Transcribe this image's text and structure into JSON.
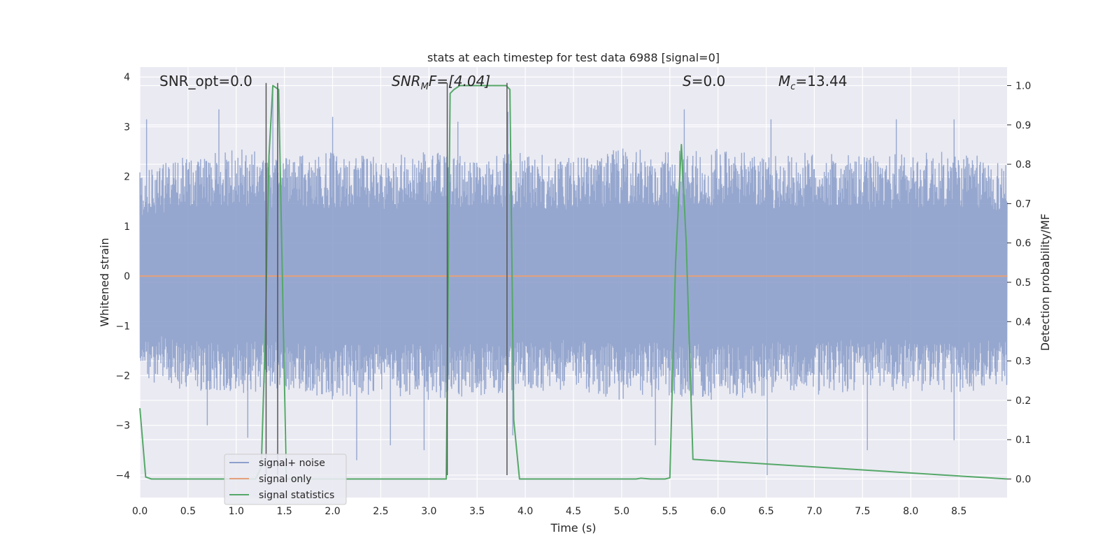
{
  "chart_data": {
    "type": "line",
    "title": "stats at each timestep for test data 6988 [signal=0]",
    "xlabel": "Time (s)",
    "ylabel": "Whitened strain",
    "y2label": "Detection probability/MF",
    "xlim": [
      0.0,
      9.0
    ],
    "ylim": [
      -4.45,
      4.2
    ],
    "y2lim": [
      -0.047,
      1.047
    ],
    "x_ticks": [
      "0.0",
      "0.5",
      "1.0",
      "1.5",
      "2.0",
      "2.5",
      "3.0",
      "3.5",
      "4.0",
      "4.5",
      "5.0",
      "5.5",
      "6.0",
      "6.5",
      "7.0",
      "7.5",
      "8.0",
      "8.5"
    ],
    "y_ticks": [
      "4",
      "3",
      "2",
      "1",
      "0",
      "−1",
      "−2",
      "−3",
      "−4"
    ],
    "y2_ticks": [
      "1.0",
      "0.9",
      "0.8",
      "0.7",
      "0.6",
      "0.5",
      "0.4",
      "0.3",
      "0.2",
      "0.1",
      "0.0"
    ],
    "grid": true,
    "legend_position": "lower-left",
    "annotations": {
      "snr_opt": "SNR_opt=0.0",
      "snr_mf_base": "SNR",
      "snr_mf_sub": "M",
      "snr_mf_rest": "F=[4.04]",
      "s_sym": "S",
      "s_rest": "=0.0",
      "mc_sym": "M",
      "mc_sub": "c",
      "mc_rest": "=13.44"
    },
    "series": [
      {
        "name": "signal+ noise",
        "color": "#8da0cb",
        "note_sampling": "noise trace",
        "band_upper_envelope": [
          [
            0.0,
            2.2
          ],
          [
            0.5,
            2.4
          ],
          [
            1.0,
            2.6
          ],
          [
            1.5,
            2.4
          ],
          [
            2.0,
            2.5
          ],
          [
            2.5,
            2.4
          ],
          [
            3.0,
            2.5
          ],
          [
            3.5,
            2.4
          ],
          [
            4.0,
            2.5
          ],
          [
            4.5,
            2.4
          ],
          [
            5.0,
            2.6
          ],
          [
            5.5,
            2.5
          ],
          [
            6.0,
            2.6
          ],
          [
            6.5,
            2.4
          ],
          [
            7.0,
            2.5
          ],
          [
            7.5,
            2.4
          ],
          [
            8.0,
            2.5
          ],
          [
            8.5,
            2.5
          ],
          [
            9.0,
            2.3
          ]
        ],
        "band_lower_envelope": [
          [
            0.0,
            -2.1
          ],
          [
            0.5,
            -2.3
          ],
          [
            1.0,
            -2.4
          ],
          [
            1.5,
            -2.3
          ],
          [
            2.0,
            -2.5
          ],
          [
            2.5,
            -2.4
          ],
          [
            3.0,
            -2.5
          ],
          [
            3.5,
            -2.4
          ],
          [
            4.0,
            -2.4
          ],
          [
            4.5,
            -2.3
          ],
          [
            5.0,
            -2.5
          ],
          [
            5.5,
            -2.4
          ],
          [
            6.0,
            -2.5
          ],
          [
            6.5,
            -2.4
          ],
          [
            7.0,
            -2.4
          ],
          [
            7.5,
            -2.3
          ],
          [
            8.0,
            -2.3
          ],
          [
            8.5,
            -2.4
          ],
          [
            9.0,
            -2.2
          ]
        ],
        "peaks": [
          [
            0.07,
            3.15
          ],
          [
            0.82,
            3.35
          ],
          [
            1.38,
            3.8
          ],
          [
            2.0,
            3.2
          ],
          [
            3.3,
            3.1
          ],
          [
            3.82,
            3.3
          ],
          [
            5.65,
            3.35
          ],
          [
            6.55,
            3.15
          ],
          [
            7.85,
            3.15
          ],
          [
            8.45,
            3.15
          ],
          [
            0.7,
            -3.0
          ],
          [
            1.12,
            -3.25
          ],
          [
            2.25,
            -3.7
          ],
          [
            2.6,
            -3.4
          ],
          [
            2.95,
            -3.5
          ],
          [
            3.87,
            -3.2
          ],
          [
            5.35,
            -3.4
          ],
          [
            6.51,
            -4.0
          ],
          [
            7.55,
            -3.5
          ],
          [
            8.45,
            -3.3
          ]
        ]
      },
      {
        "name": "signal only",
        "color": "#e5a07a",
        "x": [
          0.0,
          9.0
        ],
        "y": [
          0.0,
          0.0
        ]
      },
      {
        "name": "signal statistics",
        "color": "#55a868",
        "axis": "right",
        "x": [
          0.0,
          0.06,
          0.12,
          1.2,
          1.26,
          1.3,
          1.34,
          1.38,
          1.44,
          1.48,
          1.52,
          3.18,
          3.22,
          3.26,
          3.32,
          3.5,
          3.8,
          3.84,
          3.88,
          3.94,
          5.15,
          5.2,
          5.3,
          5.45,
          5.5,
          5.56,
          5.62,
          5.67,
          5.74,
          9.0
        ],
        "y": [
          0.18,
          0.005,
          0.0,
          0.0,
          0.03,
          0.35,
          0.82,
          1.0,
          0.99,
          0.5,
          0.0,
          0.0,
          0.98,
          0.99,
          1.0,
          1.0,
          1.0,
          0.99,
          0.15,
          0.0,
          0.0,
          0.002,
          0.0,
          0.0,
          0.003,
          0.55,
          0.85,
          0.6,
          0.05,
          0.0
        ]
      }
    ],
    "vertical_markers": [
      {
        "x": 1.31,
        "y_top": 3.88,
        "y_bottom": -4.0,
        "color": "#555555"
      },
      {
        "x": 1.43,
        "y_top": 3.88,
        "y_bottom": -4.0,
        "color": "#555555"
      },
      {
        "x": 3.19,
        "y_top": 3.88,
        "y_bottom": -4.0,
        "color": "#555555"
      },
      {
        "x": 3.81,
        "y_top": 3.88,
        "y_bottom": -4.0,
        "color": "#555555"
      }
    ],
    "legend": [
      "signal+ noise",
      "signal only",
      "signal statistics"
    ]
  }
}
